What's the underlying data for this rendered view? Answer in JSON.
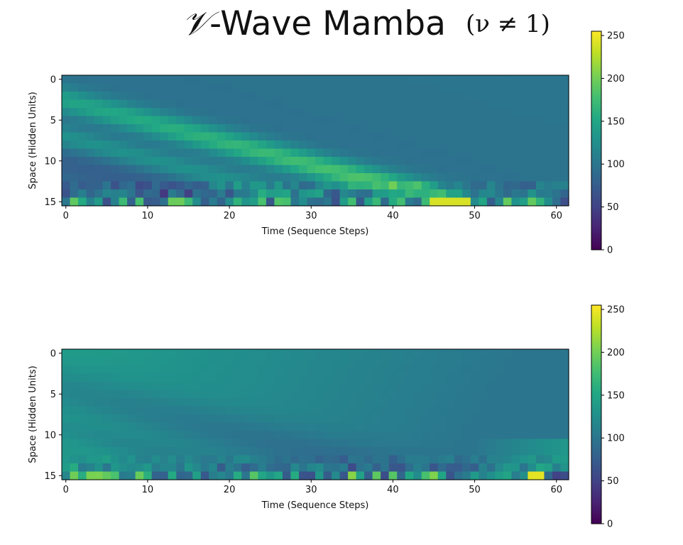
{
  "title": {
    "symbol": "𝒱",
    "main": "-Wave Mamba",
    "subtitle": "(ν ≠ 1)"
  },
  "chart_data": [
    {
      "type": "heatmap",
      "name": "top",
      "xlabel": "Time (Sequence Steps)",
      "ylabel": "Space (Hidden Units)",
      "x_range": [
        0,
        61
      ],
      "y_range": [
        0,
        15
      ],
      "xticks": [
        "0",
        "10",
        "20",
        "30",
        "40",
        "50",
        "60"
      ],
      "yticks": [
        "0",
        "5",
        "10",
        "15"
      ],
      "colormap": "viridis",
      "clim": [
        0,
        255
      ],
      "colorbar_ticks": [
        "0",
        "50",
        "100",
        "150",
        "200",
        "250"
      ],
      "pattern": "diagonal wave front traveling from bottom-left to top-right; background ~100, bright band up to ~240 near steps 45-50 at bottom rows"
    },
    {
      "type": "heatmap",
      "name": "bottom",
      "xlabel": "Time (Sequence Steps)",
      "ylabel": "Space (Hidden Units)",
      "x_range": [
        0,
        61
      ],
      "y_range": [
        0,
        15
      ],
      "xticks": [
        "0",
        "10",
        "20",
        "30",
        "40",
        "50",
        "60"
      ],
      "yticks": [
        "0",
        "5",
        "10",
        "15"
      ],
      "colormap": "viridis",
      "clim": [
        0,
        255
      ],
      "colorbar_ticks": [
        "0",
        "50",
        "100",
        "150",
        "200",
        "250"
      ],
      "pattern": "upper-left region ~140 fading to ~100 toward the right; dark diagonal band ~85; noisy bottom row"
    }
  ]
}
